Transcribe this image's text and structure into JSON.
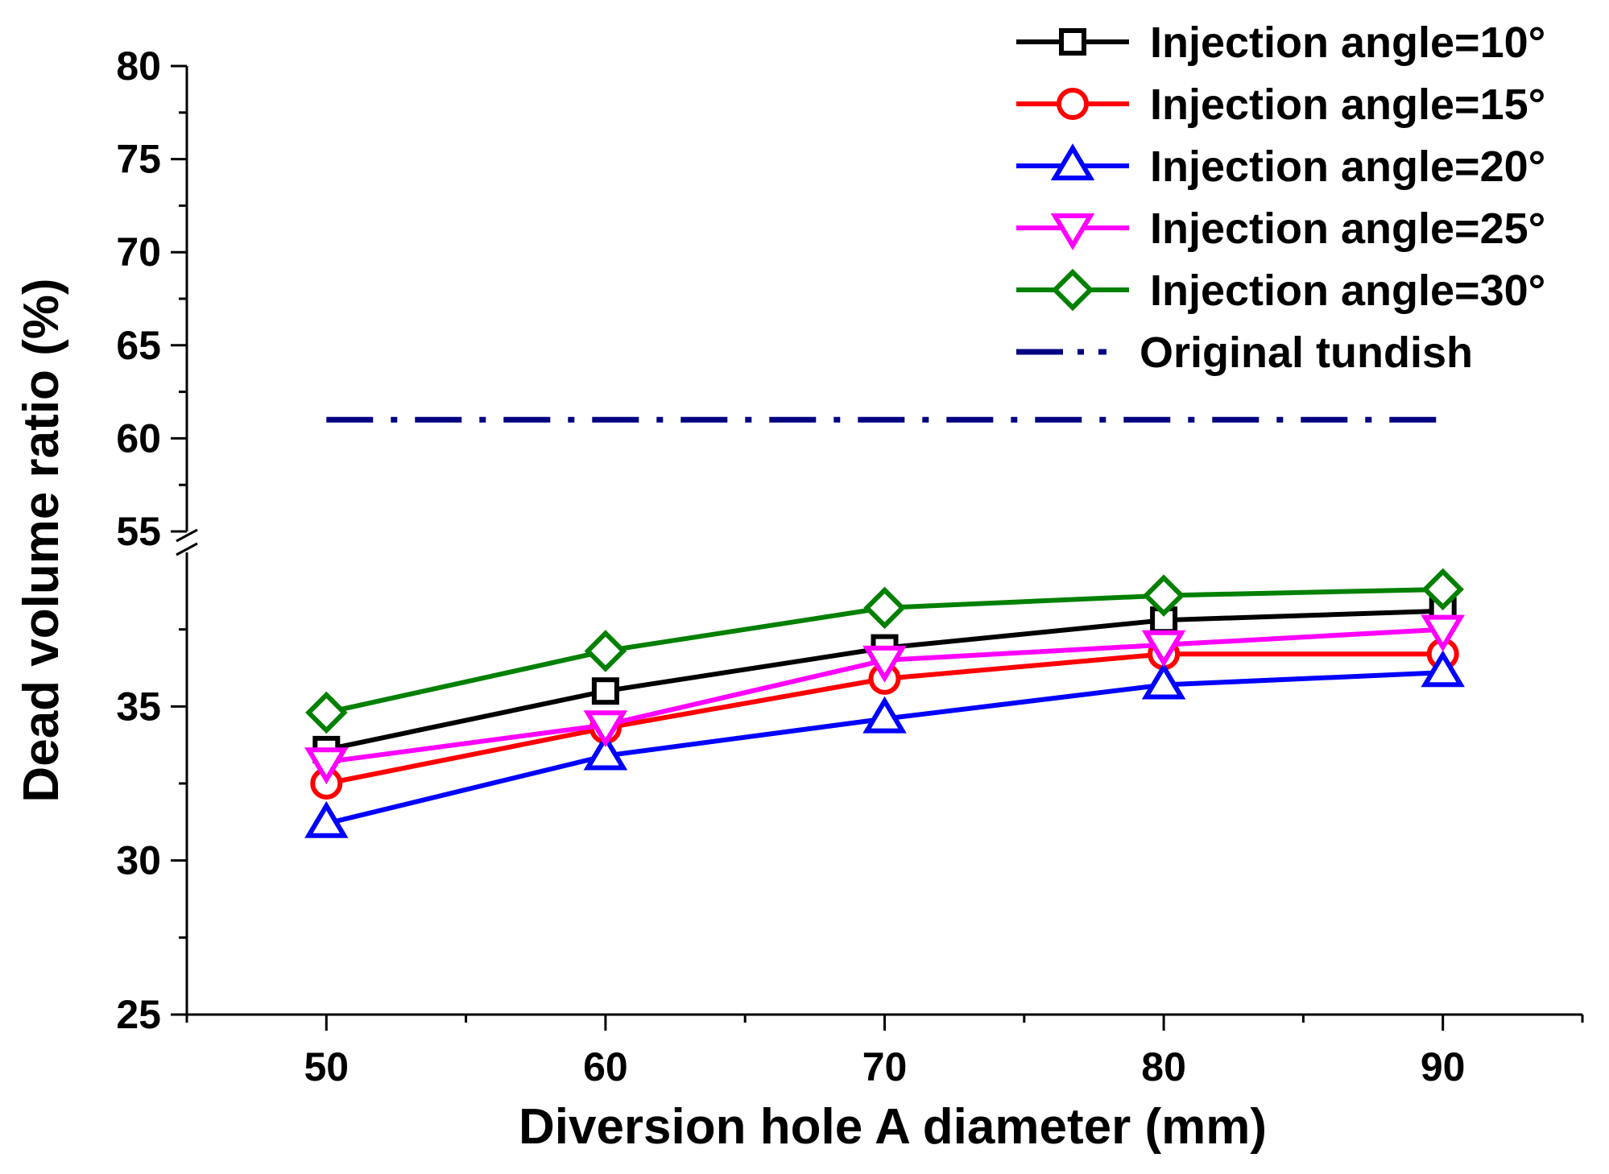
{
  "chart_data": {
    "type": "line",
    "xlabel": "Diversion hole A diameter (mm)",
    "ylabel": "Dead volume ratio (%)",
    "x": [
      50,
      60,
      70,
      80,
      90
    ],
    "xlim": [
      45,
      95
    ],
    "x_ticks": [
      "50",
      "60",
      "70",
      "80",
      "90"
    ],
    "y_axis_break": {
      "lower_range": [
        25,
        40
      ],
      "upper_range": [
        55,
        80
      ]
    },
    "y_ticks_lower": [
      "25",
      "30",
      "35"
    ],
    "y_ticks_upper": [
      "55",
      "60",
      "65",
      "70",
      "75",
      "80"
    ],
    "series": [
      {
        "name": "Injection angle=10°",
        "color": "#000000",
        "marker": "square",
        "values": [
          33.6,
          35.5,
          36.9,
          37.8,
          38.1
        ]
      },
      {
        "name": "Injection angle=15°",
        "color": "#ff0000",
        "marker": "circle",
        "values": [
          32.5,
          34.3,
          35.9,
          36.7,
          36.7
        ]
      },
      {
        "name": "Injection angle=20°",
        "color": "#0000ff",
        "marker": "triangle-up",
        "values": [
          31.2,
          33.4,
          34.6,
          35.7,
          36.1
        ]
      },
      {
        "name": "Injection angle=25°",
        "color": "#ff00ff",
        "marker": "triangle-down",
        "values": [
          33.2,
          34.4,
          36.5,
          37.0,
          37.5
        ]
      },
      {
        "name": "Injection angle=30°",
        "color": "#008000",
        "marker": "diamond",
        "values": [
          34.8,
          36.8,
          38.2,
          38.6,
          38.8
        ]
      }
    ],
    "reference_lines": [
      {
        "name": "Original tundish",
        "color": "#000080",
        "style": "dash-dot",
        "value": 61,
        "x_range": [
          50,
          90
        ]
      }
    ],
    "legend_position": "top-right",
    "grid": false
  }
}
